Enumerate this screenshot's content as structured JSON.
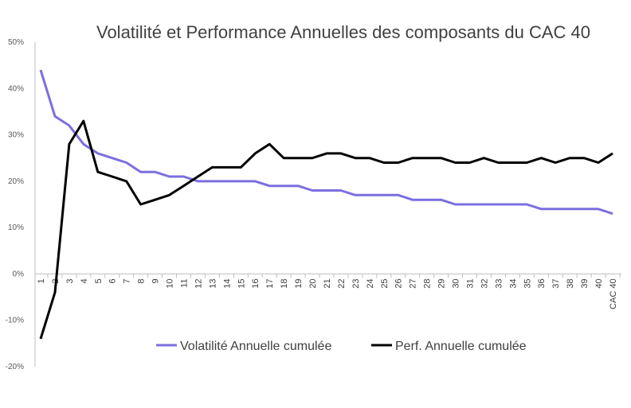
{
  "chart_data": {
    "type": "line",
    "title": "Volatilité et Performance Annuelles des composants du CAC 40",
    "xlabel": "",
    "ylabel": "",
    "categories": [
      "1",
      "2",
      "3",
      "4",
      "5",
      "6",
      "7",
      "8",
      "9",
      "10",
      "11",
      "12",
      "13",
      "14",
      "15",
      "16",
      "17",
      "18",
      "19",
      "20",
      "21",
      "22",
      "23",
      "24",
      "25",
      "26",
      "27",
      "28",
      "29",
      "30",
      "31",
      "32",
      "33",
      "34",
      "35",
      "36",
      "37",
      "38",
      "39",
      "40",
      "CAC 40"
    ],
    "yticks": [
      "50%",
      "40%",
      "30%",
      "20%",
      "10%",
      "0%",
      "-10%",
      "-20%"
    ],
    "ylim": [
      -20,
      50
    ],
    "grid": false,
    "legend": "bottom",
    "series": [
      {
        "name": "Volatilité Annuelle cumulée",
        "color": "#7B6FE0",
        "values": [
          44,
          34,
          32,
          28,
          26,
          25,
          24,
          22,
          22,
          21,
          21,
          20,
          20,
          20,
          20,
          20,
          19,
          19,
          19,
          18,
          18,
          18,
          17,
          17,
          17,
          17,
          16,
          16,
          16,
          15,
          15,
          15,
          15,
          15,
          15,
          14,
          14,
          14,
          14,
          14,
          13
        ]
      },
      {
        "name": "Perf. Annuelle cumulée",
        "color": "#000000",
        "values": [
          -14,
          -4,
          28,
          33,
          22,
          21,
          20,
          15,
          16,
          17,
          19,
          21,
          23,
          23,
          23,
          26,
          28,
          25,
          25,
          25,
          26,
          26,
          25,
          25,
          24,
          24,
          25,
          25,
          25,
          24,
          24,
          25,
          24,
          24,
          24,
          25,
          24,
          25,
          25,
          24,
          26
        ]
      }
    ]
  }
}
